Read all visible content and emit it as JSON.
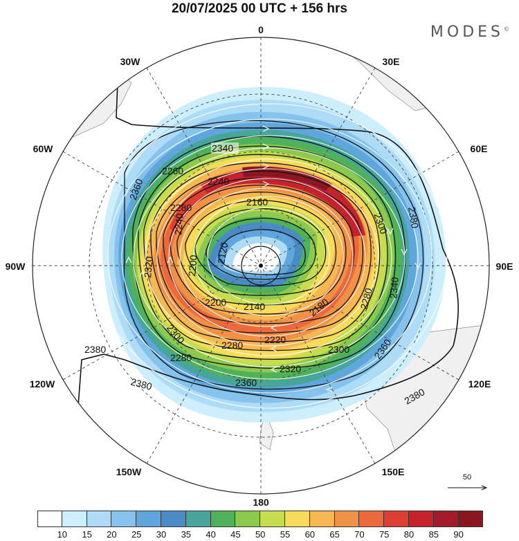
{
  "header": {
    "title": "20/07/2025  00 UTC  + 156 hrs",
    "brand": "MODES",
    "brand_mark": "©"
  },
  "map": {
    "projection": "south-polar-stereographic",
    "longitude_labels": [
      "0",
      "30E",
      "60E",
      "90E",
      "120E",
      "150E",
      "180",
      "150W",
      "120W",
      "90W",
      "60W",
      "30W"
    ],
    "contour_labels": [
      "2340",
      "2240",
      "2160",
      "2120",
      "2260",
      "2240",
      "2200",
      "2320",
      "2360",
      "2300",
      "2200",
      "2280",
      "2140",
      "2180",
      "2220",
      "2300",
      "2320",
      "2360",
      "2380",
      "2380",
      "2380",
      "2380",
      "2340",
      "2280",
      "2300",
      "2280",
      "2360",
      "2280"
    ],
    "vector_scale_label": "50"
  },
  "colorbar": {
    "colors": [
      "#ffffff",
      "#cdeefd",
      "#aedcf7",
      "#85c3ec",
      "#5ea6dc",
      "#4a8bc6",
      "#47a59a",
      "#4fb159",
      "#8cc94f",
      "#c7dd50",
      "#f7dc5c",
      "#f7b752",
      "#f09146",
      "#eb693b",
      "#df3f33",
      "#c4232d",
      "#a21b28",
      "#8a1620"
    ],
    "labels": [
      "10",
      "15",
      "20",
      "25",
      "30",
      "35",
      "40",
      "45",
      "50",
      "55",
      "60",
      "65",
      "70",
      "75",
      "80",
      "85",
      "90"
    ]
  }
}
